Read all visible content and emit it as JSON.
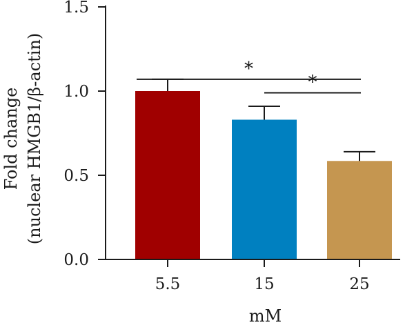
{
  "chart_data": {
    "type": "bar",
    "categories": [
      "5.5",
      "15",
      "25"
    ],
    "values": [
      1.0,
      0.83,
      0.585
    ],
    "errors": [
      0.07,
      0.08,
      0.055
    ],
    "colors": [
      "#a00000",
      "#0080c0",
      "#c59650"
    ],
    "xlabel": "mM",
    "ylabel_line1": "Fold change",
    "ylabel_line2": "(nuclear HMGB1/β-actin)",
    "ylim": [
      0,
      1.5
    ],
    "yticks": [
      "0.0",
      "0.5",
      "1.0",
      "1.5"
    ],
    "grid": false,
    "significance": [
      {
        "from": 0,
        "to": 2,
        "level": 1.07,
        "label": "*"
      },
      {
        "from": 1,
        "to": 2,
        "level": 0.99,
        "label": "*"
      }
    ]
  }
}
